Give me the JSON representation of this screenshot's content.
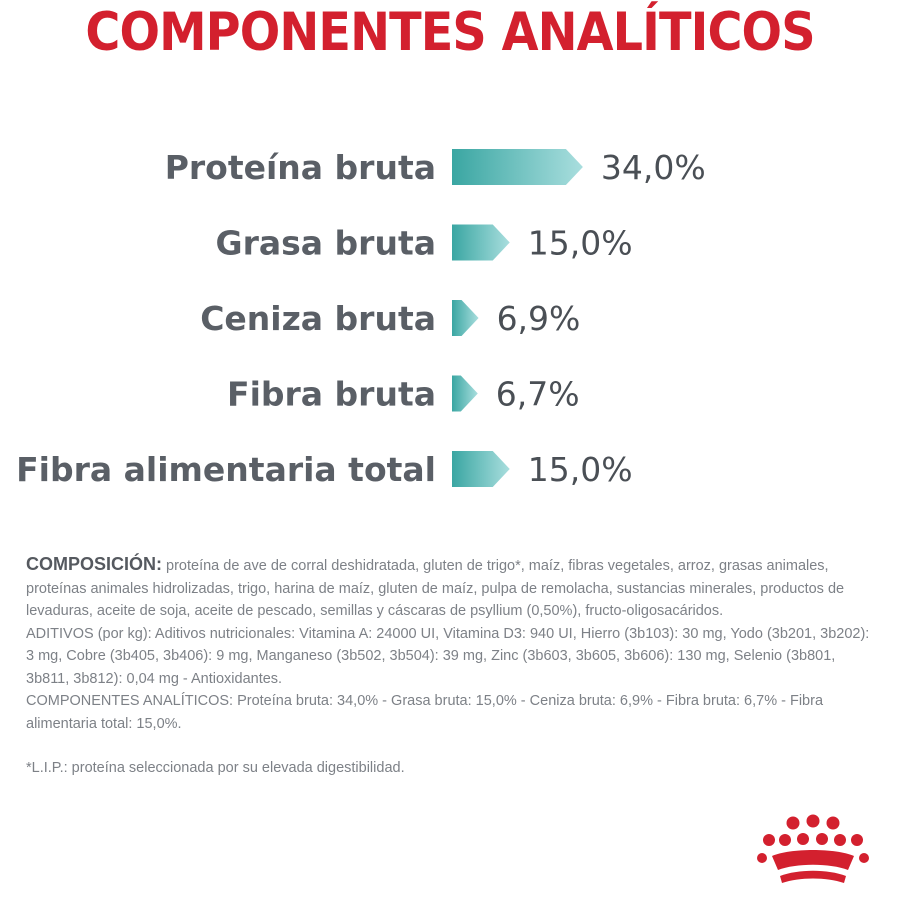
{
  "page_title": "COMPONENTES ANALÍTICOS",
  "chart_data": {
    "type": "bar",
    "orientation": "horizontal",
    "title": "COMPONENTES ANALÍTICOS",
    "categories": [
      "Proteína bruta",
      "Grasa bruta",
      "Ceniza bruta",
      "Fibra bruta",
      "Fibra alimentaria total"
    ],
    "values": [
      34.0,
      15.0,
      6.9,
      6.7,
      15.0
    ],
    "value_labels": [
      "34,0%",
      "15,0%",
      "6,9%",
      "6,7%",
      "15,0%"
    ],
    "unit": "%",
    "bar_color_start": "#3aa6a2",
    "bar_color_end": "#a9dede",
    "grid": false,
    "legend": false
  },
  "composition": {
    "heading": "COMPOSICIÓN:",
    "ingredients": " proteína de ave de corral deshidratada, gluten de trigo*, maíz, fibras vegetales, arroz, grasas animales, proteínas animales hidrolizadas, trigo, harina de maíz, gluten de maíz, pulpa de remolacha, sustancias minerales, productos de levaduras, aceite de soja, aceite de pescado, semillas y cáscaras de psyllium (0,50%), fructo-oligosacáridos.",
    "additives": "ADITIVOS (por kg): Aditivos nutricionales: Vitamina A: 24000 UI, Vitamina D3: 940 UI, Hierro (3b103): 30 mg, Yodo (3b201, 3b202): 3 mg, Cobre (3b405, 3b406): 9 mg, Manganeso (3b502, 3b504): 39 mg, Zinc (3b603, 3b605, 3b606): 130 mg, Selenio (3b801, 3b811, 3b812): 0,04 mg - Antioxidantes.",
    "analytical": "COMPONENTES ANALÍTICOS: Proteína bruta: 34,0% - Grasa bruta: 15,0% - Ceniza bruta: 6,9% - Fibra bruta: 6,7% - Fibra alimentaria total: 15,0%.",
    "note": "*L.I.P.: proteína seleccionada por su elevada digestibilidad."
  },
  "logo": {
    "icon": "royal-canin-crown-icon",
    "color": "#d3202e"
  }
}
